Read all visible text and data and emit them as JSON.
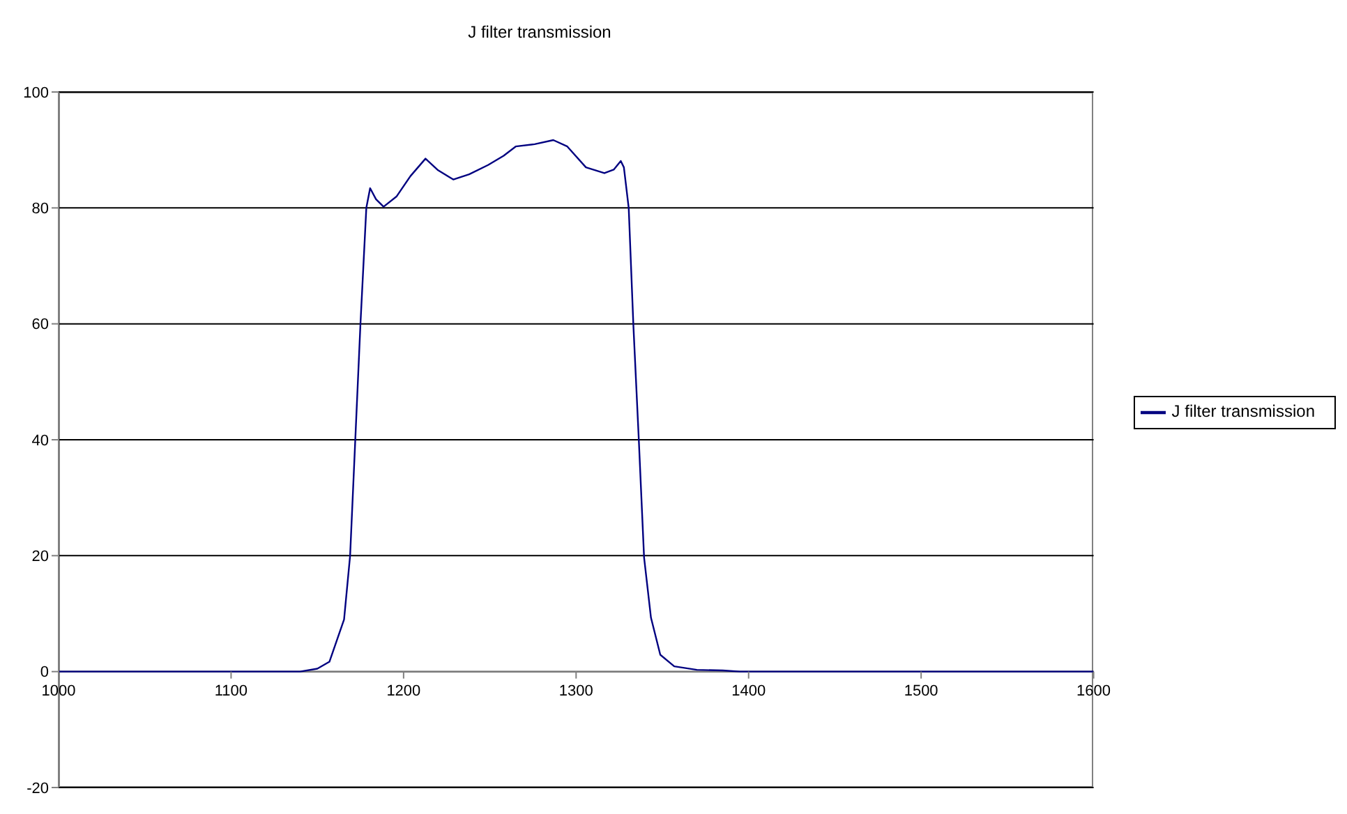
{
  "chart_data": {
    "type": "line",
    "title": "J filter transmission",
    "x": [
      1000,
      1100,
      1140,
      1150,
      1157,
      1165.5,
      1169,
      1172,
      1175,
      1178.4,
      1180.6,
      1184,
      1188.4,
      1196,
      1204,
      1212.7,
      1220,
      1228.8,
      1238,
      1249,
      1258,
      1265,
      1276,
      1286.8,
      1294.9,
      1305.7,
      1316.4,
      1321.8,
      1325.9,
      1327.7,
      1330.5,
      1333.2,
      1336.4,
      1339.4,
      1343.4,
      1348.8,
      1356.9,
      1370,
      1385,
      1395,
      1500,
      1600
    ],
    "series": [
      {
        "name": "J filter transmission",
        "color": "#000080",
        "values": [
          0,
          0,
          0,
          0.5,
          1.7,
          9,
          20,
          40,
          60,
          80,
          83.4,
          81.5,
          80.2,
          82,
          85.5,
          88.5,
          86.5,
          84.9,
          85.8,
          87.4,
          89,
          90.6,
          91,
          91.7,
          90.6,
          87,
          86,
          86.6,
          88.1,
          87,
          80,
          59.8,
          39.7,
          19.7,
          9.3,
          2.9,
          0.9,
          0.3,
          0.2,
          0,
          0,
          0
        ]
      }
    ],
    "xlim": [
      1000,
      1600
    ],
    "xticks": [
      1000,
      1100,
      1200,
      1300,
      1400,
      1500,
      1600
    ],
    "ylim": [
      -20,
      100
    ],
    "yticks": [
      -20,
      0,
      20,
      40,
      60,
      80,
      100
    ],
    "grid": "y",
    "legend": "right",
    "marker": "none",
    "line_style": "solid"
  }
}
